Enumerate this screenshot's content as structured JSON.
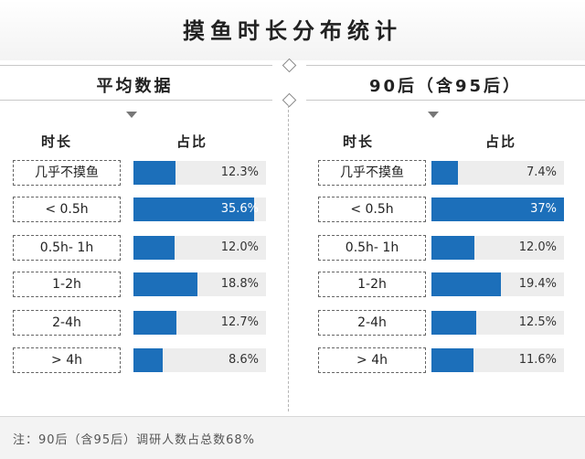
{
  "title": "摸鱼时长分布统计",
  "footnote": "注：90后（含95后）调研人数占总数68%",
  "chart_data": [
    {
      "type": "bar",
      "title": "平均数据",
      "category_header": "时长",
      "value_header": "占比",
      "categories": [
        "几乎不摸鱼",
        "< 0.5h",
        "0.5h- 1h",
        "1-2h",
        "2-4h",
        "> 4h"
      ],
      "values": [
        12.3,
        35.6,
        12.0,
        18.8,
        12.7,
        8.6
      ],
      "value_labels": [
        "12.3%",
        "35.6%",
        "12.0%",
        "18.8%",
        "12.7%",
        "8.6%"
      ],
      "unit": "%",
      "xlim": [
        0,
        39
      ],
      "orientation": "horizontal",
      "bar_color": "#1c6fba"
    },
    {
      "type": "bar",
      "title": "90后（含95后）",
      "category_header": "时长",
      "value_header": "占比",
      "categories": [
        "几乎不摸鱼",
        "< 0.5h",
        "0.5h- 1h",
        "1-2h",
        "2-4h",
        "> 4h"
      ],
      "values": [
        7.4,
        37,
        12.0,
        19.4,
        12.5,
        11.6
      ],
      "value_labels": [
        "7.4%",
        "37%",
        "12.0%",
        "19.4%",
        "12.5%",
        "11.6%"
      ],
      "unit": "%",
      "xlim": [
        0,
        37
      ],
      "orientation": "horizontal",
      "bar_color": "#1c6fba"
    }
  ]
}
